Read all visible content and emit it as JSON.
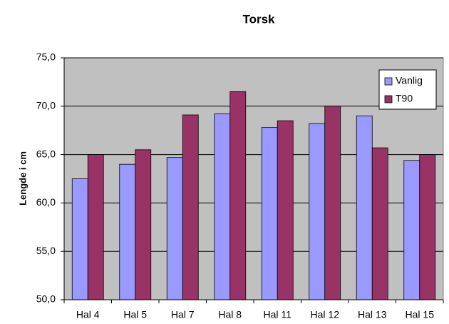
{
  "chart_data": {
    "type": "bar",
    "title": "Torsk",
    "y_label": "Lengde i cm",
    "categories": [
      "Hal 4",
      "Hal 5",
      "Hal 7",
      "Hal 8",
      "Hal 11",
      "Hal 12",
      "Hal 13",
      "Hal 15"
    ],
    "series": [
      {
        "name": "Vanlig",
        "color": "#9999ff",
        "values": [
          62.5,
          64.0,
          64.7,
          69.2,
          67.8,
          68.2,
          69.0,
          64.4
        ]
      },
      {
        "name": "T90",
        "color": "#993366",
        "values": [
          65.0,
          65.5,
          69.1,
          71.5,
          68.5,
          70.0,
          65.7,
          65.0
        ]
      }
    ],
    "ylim": [
      50,
      75
    ],
    "yticks": [
      {
        "value": 50,
        "label": "50,0"
      },
      {
        "value": 55,
        "label": "55,0"
      },
      {
        "value": 60,
        "label": "60,0"
      },
      {
        "value": 65,
        "label": "65,0"
      },
      {
        "value": 70,
        "label": "70,0"
      },
      {
        "value": 75,
        "label": "75,0"
      }
    ],
    "grid": true,
    "legend": "upper right",
    "plot_background": "#c0c0c0"
  }
}
